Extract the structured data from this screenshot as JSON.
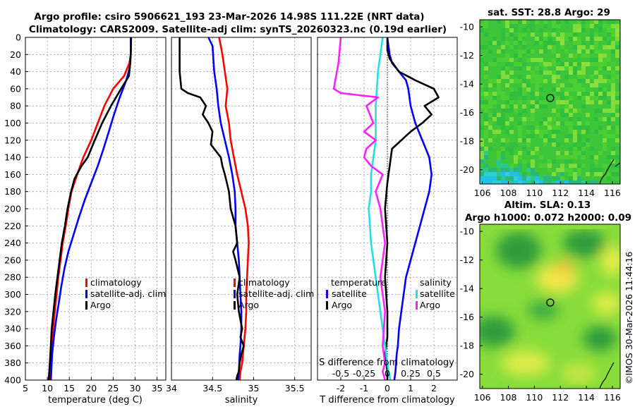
{
  "title": {
    "line1": "Argo profile: csiro 5906621_193 23-Mar-2026 14.98S 111.22E (NRT data)",
    "line2": "Climatology: CARS2009. Satellite-adj clim: synTS_20260323.nc (0.19d earlier)"
  },
  "colors": {
    "climatology": "#ff0000",
    "satellite": "#0000ff",
    "argo": "#000000",
    "sal_satellite": "#22e0e0",
    "sal_argo": "#ff20ff"
  },
  "chart_data": [
    {
      "id": "temperature",
      "type": "line",
      "xlabel": "temperature (deg C)",
      "ylabel": "",
      "xlim": [
        5,
        37
      ],
      "ylim": [
        400,
        0
      ],
      "xticks": [
        5,
        10,
        15,
        20,
        25,
        30,
        35
      ],
      "yticks": [
        0,
        20,
        40,
        60,
        80,
        100,
        120,
        140,
        160,
        180,
        200,
        220,
        240,
        260,
        280,
        300,
        320,
        340,
        360,
        380,
        400
      ],
      "legend": [
        "climatology",
        "satellite-adj. clim",
        "Argo"
      ],
      "series": [
        {
          "name": "climatology",
          "color": "#ff0000",
          "x": [
            29,
            29,
            28.7,
            27.5,
            25,
            23,
            21.5,
            20,
            18.2,
            16.8,
            15.5,
            14.8,
            14.2,
            13.5,
            13,
            12.5,
            12.1,
            11.7,
            11.3,
            11,
            10.7,
            10.4
          ],
          "y": [
            0,
            20,
            30,
            45,
            60,
            80,
            100,
            120,
            140,
            160,
            180,
            200,
            220,
            240,
            260,
            280,
            300,
            320,
            340,
            360,
            380,
            400
          ]
        },
        {
          "name": "satellite-adj. clim",
          "color": "#0000ff",
          "x": [
            29,
            29,
            28.8,
            28,
            26.5,
            25.2,
            24,
            22.8,
            21.5,
            20,
            18.5,
            17.2,
            16,
            14.8,
            13.9,
            13.2,
            12.6,
            12,
            11.5,
            11.1,
            10.8
          ],
          "y": [
            0,
            20,
            35,
            50,
            70,
            90,
            110,
            130,
            150,
            170,
            190,
            210,
            230,
            250,
            270,
            290,
            310,
            330,
            350,
            370,
            400
          ]
        },
        {
          "name": "Argo",
          "color": "#000000",
          "x": [
            29.1,
            29,
            28.9,
            28.6,
            26.8,
            24.5,
            22.5,
            20.8,
            19.2,
            17.8,
            16.2,
            15.4,
            14.6,
            14,
            13.3,
            12.8,
            12.3,
            11.8,
            11.4,
            11,
            10.7,
            10.3
          ],
          "y": [
            0,
            20,
            30,
            45,
            60,
            80,
            100,
            120,
            140,
            150,
            165,
            180,
            200,
            220,
            240,
            260,
            280,
            300,
            320,
            340,
            370,
            400
          ]
        }
      ]
    },
    {
      "id": "salinity",
      "type": "line",
      "xlabel": "salinity",
      "ylabel": "",
      "xlim": [
        34,
        35.7
      ],
      "ylim": [
        400,
        0
      ],
      "xticks": [
        "34",
        "34.5",
        "35",
        "35.5"
      ],
      "legend": [
        "climatology",
        "satellite-adj. clim",
        "Argo"
      ],
      "series": [
        {
          "name": "climatology",
          "color": "#ff0000",
          "x": [
            34.58,
            34.62,
            34.65,
            34.68,
            34.66,
            34.7,
            34.72,
            34.76,
            34.8,
            34.85,
            34.9,
            34.93,
            34.94,
            34.93,
            34.92,
            34.91,
            34.91,
            34.9,
            34.88,
            34.87,
            34.86,
            34.84,
            34.83
          ],
          "y": [
            0,
            20,
            40,
            60,
            80,
            100,
            120,
            140,
            160,
            180,
            200,
            220,
            240,
            260,
            280,
            300,
            320,
            340,
            360,
            370,
            380,
            390,
            400
          ]
        },
        {
          "name": "satellite-adj. clim",
          "color": "#0000ff",
          "x": [
            34.45,
            34.5,
            34.52,
            34.55,
            34.57,
            34.6,
            34.65,
            34.7,
            34.74,
            34.77,
            34.78,
            34.78,
            34.8,
            34.82,
            34.83,
            34.84,
            34.85,
            34.85,
            34.84,
            34.83,
            34.82,
            34.81
          ],
          "y": [
            0,
            10,
            40,
            60,
            80,
            100,
            120,
            140,
            160,
            180,
            200,
            220,
            240,
            260,
            280,
            300,
            320,
            340,
            360,
            370,
            390,
            400
          ]
        },
        {
          "name": "Argo",
          "color": "#000000",
          "x": [
            34.1,
            34.1,
            34.12,
            34.2,
            34.35,
            34.42,
            34.38,
            34.45,
            34.5,
            34.48,
            34.6,
            34.62,
            34.65,
            34.7,
            34.72,
            34.78,
            34.8,
            34.75,
            34.78,
            34.83,
            34.8,
            34.82,
            34.86,
            34.84,
            34.88,
            34.85,
            34.83,
            34.82,
            34.8,
            34.79
          ],
          "y": [
            0,
            40,
            60,
            65,
            70,
            80,
            90,
            100,
            110,
            125,
            140,
            150,
            160,
            180,
            200,
            220,
            240,
            250,
            260,
            280,
            300,
            320,
            340,
            350,
            360,
            370,
            380,
            390,
            395,
            400
          ]
        }
      ]
    },
    {
      "id": "difference",
      "type": "line",
      "xlabel": "T difference from climatology",
      "xlabel_top": "S difference from climatology",
      "xlim": [
        -3,
        3
      ],
      "ylim": [
        400,
        0
      ],
      "xticks": [
        "-2",
        "-1",
        "0",
        "1",
        "2"
      ],
      "xticks_top": [
        "-0.5",
        "-0.25",
        "0",
        "0.25",
        "0.5"
      ],
      "legend_temperature_title": "temperature",
      "legend_salinity_title": "salinity",
      "legend": [
        "satellite",
        "Argo"
      ],
      "series": [
        {
          "name": "T satellite",
          "color": "#0000ff",
          "x": [
            0,
            0.1,
            0.2,
            0.5,
            0.8,
            0.9,
            1.0,
            1.2,
            1.5,
            1.8,
            1.9,
            1.8,
            1.6,
            1.4,
            1.2,
            1.0,
            0.8,
            0.7,
            0.6,
            0.5,
            0.45,
            0.4,
            0.35,
            0.3
          ],
          "y": [
            0,
            20,
            30,
            40,
            50,
            60,
            80,
            100,
            120,
            140,
            160,
            180,
            200,
            220,
            240,
            260,
            280,
            300,
            320,
            340,
            360,
            370,
            390,
            400
          ]
        },
        {
          "name": "T Argo",
          "color": "#000000",
          "x": [
            0,
            0,
            0.1,
            0.5,
            1.2,
            2,
            2.2,
            1.6,
            1.9,
            1.5,
            1.0,
            0.6,
            0.2,
            0.1,
            0,
            -0.1,
            0,
            -0.1,
            0,
            0,
            -0.1,
            0,
            0
          ],
          "y": [
            0,
            15,
            25,
            40,
            50,
            60,
            70,
            80,
            90,
            100,
            110,
            120,
            130,
            150,
            170,
            200,
            240,
            280,
            320,
            350,
            370,
            390,
            400
          ]
        },
        {
          "name": "S satellite",
          "color": "#22e0e0",
          "x": [
            -0.2,
            -0.3,
            -0.4,
            -0.45,
            -0.5,
            -0.5,
            -0.5,
            -0.6,
            -0.7,
            -0.7,
            -0.8,
            -0.75,
            -0.7,
            -0.6,
            -0.5,
            -0.4,
            -0.3,
            -0.2,
            -0.1,
            0,
            0.05,
            0.1,
            0.12
          ],
          "y": [
            0,
            20,
            40,
            60,
            80,
            100,
            120,
            140,
            160,
            180,
            200,
            220,
            240,
            260,
            280,
            300,
            320,
            340,
            360,
            380,
            390,
            395,
            400
          ]
        },
        {
          "name": "S Argo",
          "color": "#ff20ff",
          "x": [
            -2,
            -2.1,
            -2.3,
            -2.0,
            -0.4,
            -0.9,
            -0.6,
            -1.0,
            -0.5,
            -0.9,
            -1.0,
            -0.7,
            -0.2,
            -0.5,
            -0.3,
            -0.1,
            -0.3,
            -0.1,
            -0.2,
            -0.1,
            -0.2,
            -0.1
          ],
          "y": [
            0,
            30,
            60,
            65,
            70,
            80,
            100,
            110,
            120,
            130,
            140,
            150,
            160,
            180,
            200,
            240,
            280,
            320,
            360,
            380,
            390,
            400
          ]
        }
      ]
    },
    {
      "id": "sst_map",
      "type": "heatmap",
      "title": "sat. SST: 28.8 Argo: 29",
      "xticks": [
        "106",
        "108",
        "110",
        "112",
        "114",
        "116"
      ],
      "yticks": [
        "-10",
        "-12",
        "-14",
        "-16",
        "-18",
        "-20"
      ],
      "xlim": [
        105.8,
        116.6
      ],
      "ylim": [
        -21,
        -9.5
      ],
      "argo_position": [
        111.22,
        -14.98
      ]
    },
    {
      "id": "sla_map",
      "type": "heatmap",
      "title_line1": "Altim. SLA: 0.13",
      "title_line2": "Argo h1000: 0.072 h2000: 0.09",
      "xticks": [
        "106",
        "108",
        "110",
        "112",
        "114",
        "116"
      ],
      "yticks": [
        "-10",
        "-12",
        "-14",
        "-16",
        "-18",
        "-20"
      ],
      "xlim": [
        105.8,
        116.6
      ],
      "ylim": [
        -21,
        -9.5
      ],
      "argo_position": [
        111.22,
        -14.98
      ]
    }
  ],
  "watermark": "©IMOS 30-Mar-2026 11:44:16"
}
